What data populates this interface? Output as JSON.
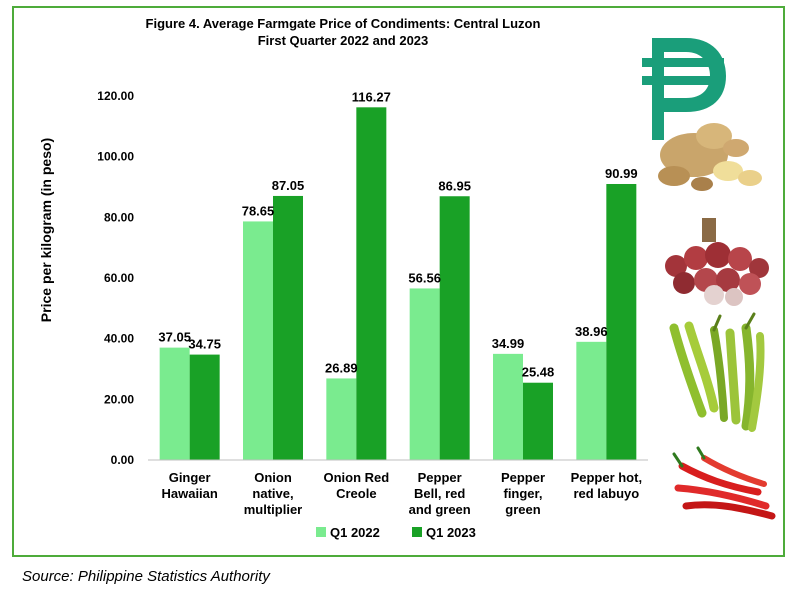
{
  "chart_data": {
    "type": "bar",
    "title_line1": "Figure 4. Average Farmgate Price of Condiments: Central Luzon",
    "title_line2": "First Quarter 2022 and 2023",
    "xlabel": "",
    "ylabel": "Price per kilogram (in peso)",
    "ylim": [
      0,
      120
    ],
    "yticks": [
      "0.00",
      "20.00",
      "40.00",
      "60.00",
      "80.00",
      "100.00",
      "120.00"
    ],
    "grid": false,
    "legend_position": "bottom",
    "categories": [
      [
        "Ginger",
        "Hawaiian"
      ],
      [
        "Onion",
        "native,",
        "multiplier"
      ],
      [
        "Onion Red",
        "Creole"
      ],
      [
        "Pepper",
        "Bell, red",
        "and green"
      ],
      [
        "Pepper",
        "finger,",
        "green"
      ],
      [
        "Pepper hot,",
        "red labuyo"
      ]
    ],
    "series": [
      {
        "name": "Q1 2022",
        "color": "#7aeb8f",
        "values": [
          37.05,
          78.65,
          26.89,
          56.56,
          34.99,
          38.96
        ],
        "labels": [
          "37.05",
          "78.65",
          "26.89",
          "56.56",
          "34.99",
          "38.96"
        ]
      },
      {
        "name": "Q1 2023",
        "color": "#19a126",
        "values": [
          34.75,
          87.05,
          116.27,
          86.95,
          25.48,
          90.99
        ],
        "labels": [
          "34.75",
          "87.05",
          "116.27",
          "86.95",
          "25.48",
          "90.99"
        ]
      }
    ]
  },
  "decor": {
    "peso_icon": "peso-sign-icon",
    "peso_color": "#1a9e7a",
    "images": [
      "ginger-image",
      "shallot-onion-image",
      "green-finger-pepper-image",
      "red-chili-pepper-image"
    ]
  },
  "footer": {
    "source": "Source: Philippine Statistics Authority"
  }
}
